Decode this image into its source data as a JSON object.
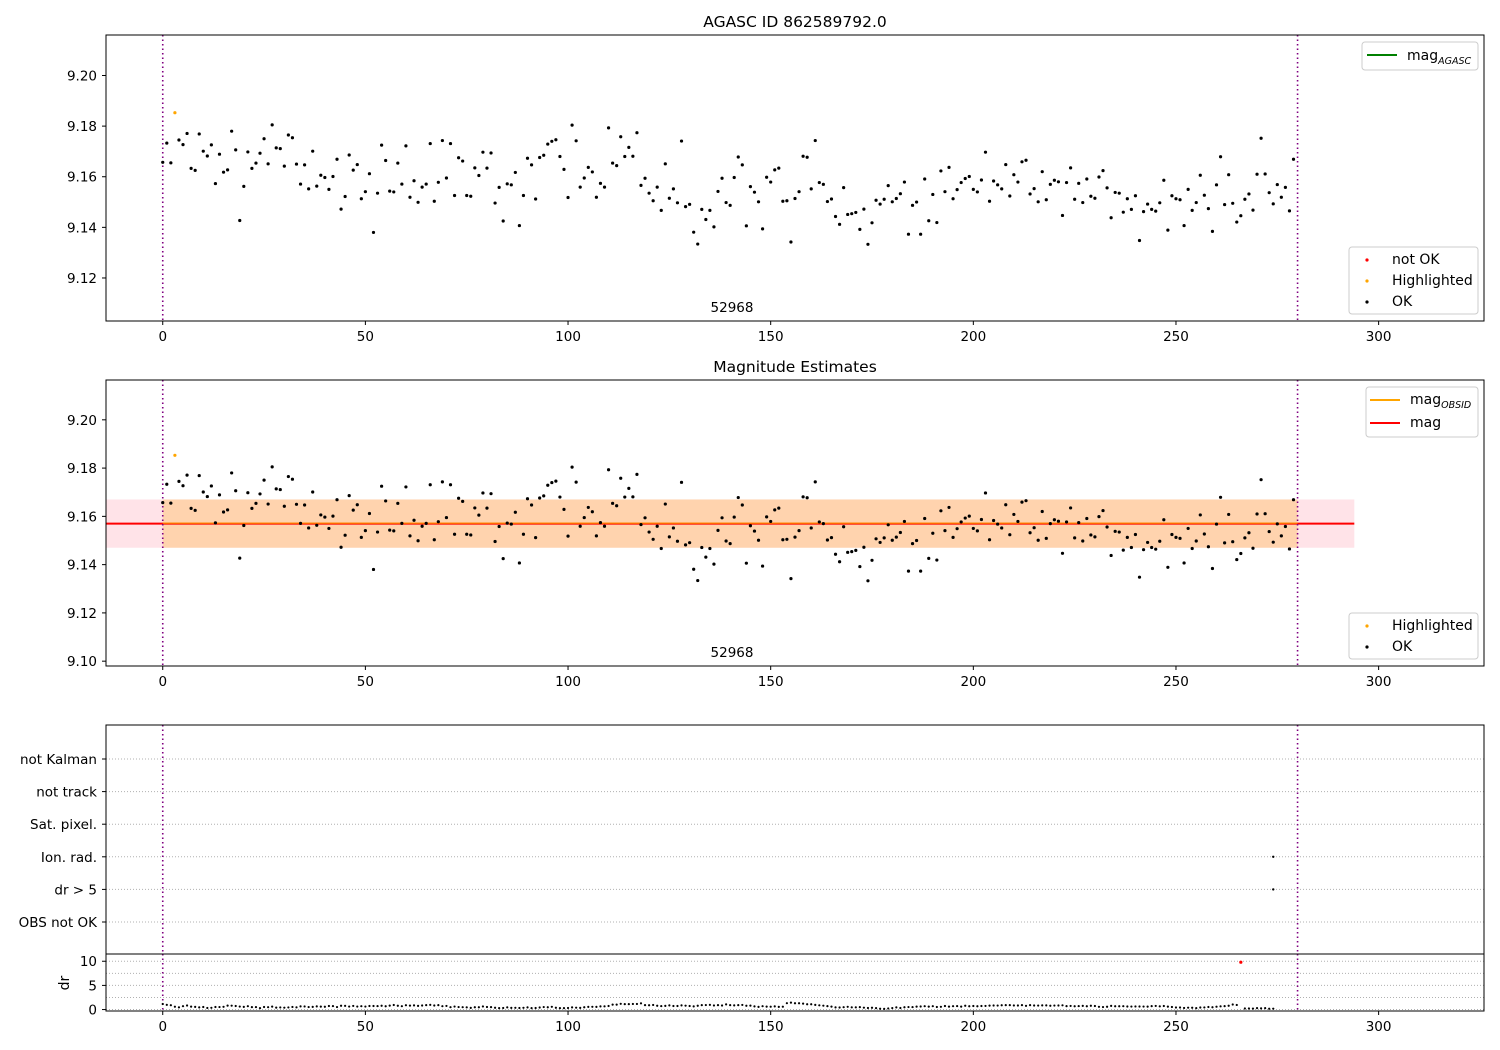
{
  "chart_data": [
    {
      "type": "scatter",
      "title": "AGASC ID 862589792.0",
      "xlabel": "",
      "ylabel": "",
      "xlim": [
        -14,
        326
      ],
      "ylim": [
        9.103,
        9.216
      ],
      "xticks": [
        0,
        50,
        100,
        150,
        200,
        250,
        300
      ],
      "xtick_labels": [
        "0",
        "50",
        "100",
        "150",
        "200",
        "250",
        "300"
      ],
      "yticks": [
        9.12,
        9.14,
        9.16,
        9.18,
        9.2
      ],
      "ytick_labels": [
        "9.12",
        "9.14",
        "9.16",
        "9.18",
        "9.20"
      ],
      "vlines": [
        0,
        280
      ],
      "annotation": {
        "text": "52968",
        "x": 140
      },
      "legend_lines": [
        {
          "label": "mag",
          "sub": "AGASC",
          "color": "#008000"
        }
      ],
      "legend_markers": [
        {
          "label": "not OK",
          "color": "#ff0000"
        },
        {
          "label": "Highlighted",
          "color": "#ffa500"
        },
        {
          "label": "OK",
          "color": "#000000"
        }
      ],
      "highlighted": [
        {
          "x": 3,
          "y": 9.1853
        }
      ],
      "grid": false
    },
    {
      "type": "scatter",
      "title": "Magnitude Estimates",
      "xlabel": "",
      "ylabel": "",
      "xlim": [
        -14,
        326
      ],
      "ylim": [
        9.098,
        9.2165
      ],
      "xticks": [
        0,
        50,
        100,
        150,
        200,
        250,
        300
      ],
      "xtick_labels": [
        "0",
        "50",
        "100",
        "150",
        "200",
        "250",
        "300"
      ],
      "yticks": [
        9.1,
        9.12,
        9.14,
        9.16,
        9.18,
        9.2
      ],
      "ytick_labels": [
        "9.10",
        "9.12",
        "9.14",
        "9.16",
        "9.18",
        "9.20"
      ],
      "vlines": [
        0,
        280
      ],
      "annotation": {
        "text": "52968",
        "x": 140
      },
      "mag": 9.157,
      "band": [
        9.147,
        9.167
      ],
      "band_x": [
        -14,
        294
      ],
      "legend_lines": [
        {
          "label": "mag",
          "sub": "OBSID",
          "color": "#ffa500"
        },
        {
          "label": "mag",
          "sub": "",
          "color": "#ff0000"
        }
      ],
      "legend_markers": [
        {
          "label": "Highlighted",
          "color": "#ffa500"
        },
        {
          "label": "OK",
          "color": "#000000"
        }
      ],
      "highlighted": [
        {
          "x": 3,
          "y": 9.1853
        }
      ],
      "grid": false
    },
    {
      "type": "scatter",
      "xlim": [
        -14,
        326
      ],
      "xticks": [
        0,
        50,
        100,
        150,
        200,
        250,
        300
      ],
      "xtick_labels": [
        "0",
        "50",
        "100",
        "150",
        "200",
        "250",
        "300"
      ],
      "vlines": [
        0,
        280
      ],
      "flag_categories": [
        "not Kalman",
        "not track",
        "Sat. pixel.",
        "Ion. rad.",
        "dr > 5",
        "OBS not OK"
      ],
      "flag_points": [
        {
          "category": "Ion. rad.",
          "x": 274
        },
        {
          "category": "dr > 5",
          "x": 274
        }
      ],
      "dr_ylabel": "dr",
      "dr_ylim": [
        -0.3,
        11.5
      ],
      "dr_yticks": [
        0,
        5,
        10
      ],
      "dr_ytick_labels": [
        "0",
        "5",
        "10"
      ],
      "dr_outliers": [
        {
          "x": 274,
          "y": 9.8
        }
      ],
      "grid": true
    }
  ],
  "series": {
    "mag_values": [
      9.1657,
      9.1733,
      9.1655,
      9.1853,
      9.1745,
      9.1727,
      9.1771,
      9.1633,
      9.1625,
      9.1769,
      9.1701,
      9.1682,
      9.1726,
      9.1573,
      9.1689,
      9.1618,
      9.1627,
      9.178,
      9.1706,
      9.1427,
      9.1562,
      9.1698,
      9.1633,
      9.1654,
      9.1693,
      9.175,
      9.1651,
      9.1805,
      9.1714,
      9.1711,
      9.1642,
      9.1765,
      9.1754,
      9.165,
      9.1571,
      9.1647,
      9.1552,
      9.1701,
      9.1563,
      9.1606,
      9.1597,
      9.155,
      9.1601,
      9.1669,
      9.1472,
      9.1522,
      9.1686,
      9.1626,
      9.1648,
      9.1513,
      9.1541,
      9.1612,
      9.138,
      9.1535,
      9.1725,
      9.1664,
      9.1543,
      9.154,
      9.1654,
      9.1571,
      9.1722,
      9.1519,
      9.1584,
      9.1499,
      9.1559,
      9.1571,
      9.1731,
      9.1503,
      9.1578,
      9.1743,
      9.1595,
      9.1731,
      9.1526,
      9.1675,
      9.1662,
      9.1526,
      9.1523,
      9.1635,
      9.1605,
      9.1697,
      9.1634,
      9.1694,
      9.1496,
      9.1558,
      9.1425,
      9.1572,
      9.1568,
      9.1617,
      9.1407,
      9.1526,
      9.1673,
      9.1647,
      9.1512,
      9.1676,
      9.1685,
      9.1729,
      9.174,
      9.1746,
      9.168,
      9.1629,
      9.1518,
      9.1804,
      9.1742,
      9.1559,
      9.1595,
      9.1637,
      9.1619,
      9.1519,
      9.1574,
      9.1559,
      9.1793,
      9.1654,
      9.1644,
      9.1758,
      9.168,
      9.1716,
      9.1681,
      9.1774,
      9.1566,
      9.1594,
      9.1535,
      9.1505,
      9.1559,
      9.1467,
      9.1651,
      9.1515,
      9.1552,
      9.1497,
      9.1741,
      9.1482,
      9.1491,
      9.1381,
      9.1334,
      9.1471,
      9.1431,
      9.1467,
      9.1402,
      9.1542,
      9.1594,
      9.1498,
      9.1487,
      9.1597,
      9.1678,
      9.1647,
      9.1406,
      9.1561,
      9.1539,
      9.1501,
      9.1394,
      9.1598,
      9.1579,
      9.1627,
      9.1634,
      9.1503,
      9.1505,
      9.1342,
      9.1514,
      9.1541,
      9.1681,
      9.1677,
      9.1552,
      9.1743,
      9.1577,
      9.157,
      9.1502,
      9.1512,
      9.1443,
      9.1412,
      9.1557,
      9.1451,
      9.1454,
      9.1459,
      9.1392,
      9.1472,
      9.1333,
      9.1418,
      9.1507,
      9.1492,
      9.1511,
      9.1565,
      9.1501,
      9.1514,
      9.1533,
      9.1579,
      9.1373,
      9.1487,
      9.15,
      9.1373,
      9.1591,
      9.1426,
      9.153,
      9.1419,
      9.1623,
      9.1541,
      9.1637,
      9.1513,
      9.1549,
      9.1577,
      9.1593,
      9.1601,
      9.155,
      9.154,
      9.1587,
      9.1697,
      9.1503,
      9.1583,
      9.1568,
      9.1552,
      9.1648,
      9.1524,
      9.1608,
      9.1579,
      9.1659,
      9.1665,
      9.1532,
      9.1553,
      9.1501,
      9.162,
      9.1509,
      9.157,
      9.1586,
      9.158,
      9.1447,
      9.1577,
      9.1635,
      9.1511,
      9.1574,
      9.1498,
      9.1591,
      9.1523,
      9.1515,
      9.1599,
      9.1624,
      9.1556,
      9.1438,
      9.1538,
      9.1535,
      9.146,
      9.1513,
      9.1471,
      9.1525,
      9.1348,
      9.1462,
      9.1492,
      9.1471,
      9.1464,
      9.1497,
      9.1586,
      9.1389,
      9.1525,
      9.1513,
      9.1509,
      9.1407,
      9.155,
      9.1467,
      9.1498,
      9.1606,
      9.1527,
      9.1474,
      9.1384,
      9.1568,
      9.1679,
      9.149,
      9.1608,
      9.1495,
      9.1421,
      9.1446,
      9.1511,
      9.1532,
      9.1468,
      9.161,
      9.1752,
      9.1611,
      9.1537,
      9.1493,
      9.1569,
      9.1519,
      9.1558,
      9.1465,
      9.1669
    ],
    "dr_values": [
      1.15,
      0.98,
      0.9,
      0.59,
      0.46,
      0.7,
      0.84,
      0.6,
      0.56,
      0.45,
      0.53,
      0.33,
      0.36,
      0.53,
      0.52,
      0.57,
      0.81,
      0.8,
      0.73,
      0.62,
      0.55,
      0.7,
      0.5,
      0.51,
      0.29,
      0.53,
      0.49,
      0.61,
      0.4,
      0.44,
      0.39,
      0.44,
      0.54,
      0.46,
      0.66,
      0.64,
      0.52,
      0.55,
      0.65,
      0.6,
      0.58,
      0.74,
      0.72,
      0.52,
      0.79,
      0.77,
      0.62,
      0.75,
      0.62,
      0.7,
      0.62,
      0.74,
      0.73,
      0.72,
      0.79,
      0.69,
      0.81,
      0.94,
      0.79,
      0.7,
      0.9,
      0.82,
      0.86,
      0.76,
      0.84,
      0.91,
      0.98,
      0.84,
      0.92,
      0.7,
      0.75,
      0.49,
      0.62,
      0.52,
      0.49,
      0.46,
      0.35,
      0.48,
      0.47,
      0.64,
      0.53,
      0.5,
      0.38,
      0.3,
      0.32,
      0.46,
      0.34,
      0.36,
      0.32,
      0.36,
      0.45,
      0.29,
      0.32,
      0.43,
      0.52,
      0.47,
      0.57,
      0.38,
      0.29,
      0.3,
      0.32,
      0.45,
      0.39,
      0.35,
      0.47,
      0.55,
      0.57,
      0.56,
      0.65,
      0.67,
      0.73,
      1.02,
      1.02,
      1.19,
      1.13,
      1.13,
      1.16,
      1.16,
      1.29,
      0.91,
      0.89,
      0.95,
      0.79,
      0.72,
      0.76,
      0.87,
      0.73,
      0.73,
      0.86,
      0.8,
      0.74,
      0.66,
      0.78,
      0.92,
      0.93,
      0.98,
      0.85,
      0.91,
      0.84,
      1.07,
      0.91,
      0.87,
      0.92,
      0.96,
      0.79,
      0.82,
      0.66,
      0.56,
      0.7,
      0.6,
      0.59,
      0.66,
      0.56,
      0.59,
      1.32,
      1.44,
      1.31,
      1.3,
      1.23,
      1.09,
      1.09,
      0.97,
      0.88,
      0.8,
      0.71,
      0.6,
      0.45,
      0.42,
      0.49,
      0.57,
      0.46,
      0.46,
      0.5,
      0.39,
      0.32,
      0.37,
      0.29,
      0.16,
      0.14,
      0.23,
      0.31,
      0.45,
      0.32,
      0.47,
      0.52,
      0.51,
      0.61,
      0.63,
      0.7,
      0.6,
      0.7,
      0.53,
      0.57,
      0.73,
      0.6,
      0.7,
      0.72,
      0.6,
      0.79,
      0.69,
      0.73,
      0.69,
      0.73,
      0.75,
      0.81,
      0.84,
      0.83,
      0.89,
      0.92,
      0.91,
      0.85,
      0.84,
      0.91,
      0.77,
      0.91,
      0.84,
      0.83,
      0.87,
      0.86,
      0.79,
      0.83,
      0.84,
      0.88,
      0.71,
      0.75,
      0.69,
      0.72,
      0.76,
      0.69,
      0.79,
      0.73,
      0.57,
      0.52,
      0.58,
      0.76,
      0.68,
      0.69,
      0.7,
      0.63,
      0.62,
      0.64,
      0.63,
      0.62,
      0.6,
      0.71,
      0.75,
      0.67,
      0.74,
      0.6,
      0.53,
      0.42,
      0.42,
      0.33,
      0.39,
      0.37,
      0.3,
      0.42,
      0.44,
      0.53,
      0.47,
      0.59,
      0.67,
      0.71,
      0.79,
      1.04,
      0.95,
      9.8,
      0.21,
      0.22,
      0.2,
      0.29,
      0.25,
      0.29,
      0.16,
      0.18
    ]
  }
}
